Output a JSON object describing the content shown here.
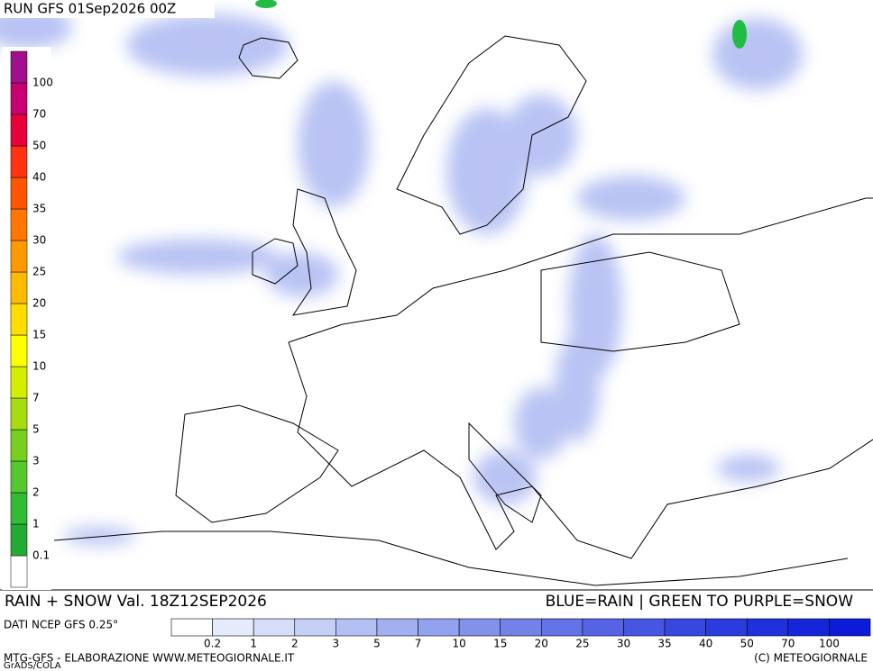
{
  "header": {
    "run": "RUN GFS 01Sep2026 00Z"
  },
  "footer": {
    "title": "RAIN + SNOW Val. 18Z12SEP2026",
    "legend_note": "BLUE=RAIN | GREEN TO PURPLE=SNOW",
    "source": "DATI NCEP GFS 0.25°",
    "credit": "MTG-GFS - ELABORAZIONE WWW.METEOGIORNALE.IT",
    "copyright": "(C) METEOGIORNALE",
    "software": "GrADS/COLA"
  },
  "snow_legend": {
    "labels": [
      "0.1",
      "1",
      "2",
      "3",
      "5",
      "7",
      "10",
      "15",
      "20",
      "25",
      "30",
      "35",
      "40",
      "50",
      "70",
      "100"
    ],
    "colors": [
      "#ffffff",
      "#22aa33",
      "#33bb33",
      "#55c830",
      "#77d020",
      "#a6dd10",
      "#d4ee00",
      "#ffff00",
      "#ffdd00",
      "#ffbb00",
      "#ff9900",
      "#ff7700",
      "#ff5500",
      "#ff3311",
      "#e8003a",
      "#c80070",
      "#a0108c"
    ]
  },
  "rain_legend": {
    "labels": [
      "0.2",
      "1",
      "2",
      "3",
      "5",
      "7",
      "10",
      "15",
      "20",
      "25",
      "30",
      "35",
      "40",
      "50",
      "70",
      "100"
    ],
    "colors": [
      "#ffffff",
      "#e6ebfb",
      "#d6ddf8",
      "#c6cff6",
      "#b4bff3",
      "#a3b0f0",
      "#93a2ee",
      "#8391eb",
      "#7381e8",
      "#6372e6",
      "#5563e4",
      "#4655e2",
      "#3847e0",
      "#2c3bde",
      "#2030dd",
      "#1525da",
      "#0c1bd8"
    ]
  }
}
